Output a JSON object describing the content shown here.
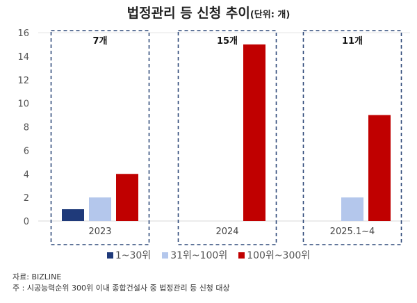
{
  "title": {
    "main": "법정관리 등 신청 추이",
    "unit": "(단위: 개)"
  },
  "chart_data": {
    "type": "bar",
    "title": "법정관리 등 신청 추이(단위: 개)",
    "categories": [
      "2023",
      "2024",
      "2025.1~4"
    ],
    "series": [
      {
        "name": "1~30위",
        "color": "#1f3a7a",
        "values": [
          1,
          0,
          0
        ]
      },
      {
        "name": "31위~100위",
        "color": "#b4c7ec",
        "values": [
          2,
          0,
          2
        ]
      },
      {
        "name": "100위~300위",
        "color": "#c00000",
        "values": [
          4,
          15,
          9
        ]
      }
    ],
    "totals": [
      "7개",
      "15개",
      "11개"
    ],
    "yticks": [
      "0",
      "2",
      "4",
      "6",
      "8",
      "10",
      "12",
      "14",
      "16"
    ],
    "ylim": [
      0,
      16
    ],
    "grid": false,
    "legend": "bottom",
    "group_box_style": "dashed",
    "group_box_color": "#2f4a7a"
  },
  "footer": {
    "source": "자료: BIZLINE",
    "note": "주 : 시공능력순위 300위 이내 종합건설사 중 법정관리 등 신청 대상"
  }
}
